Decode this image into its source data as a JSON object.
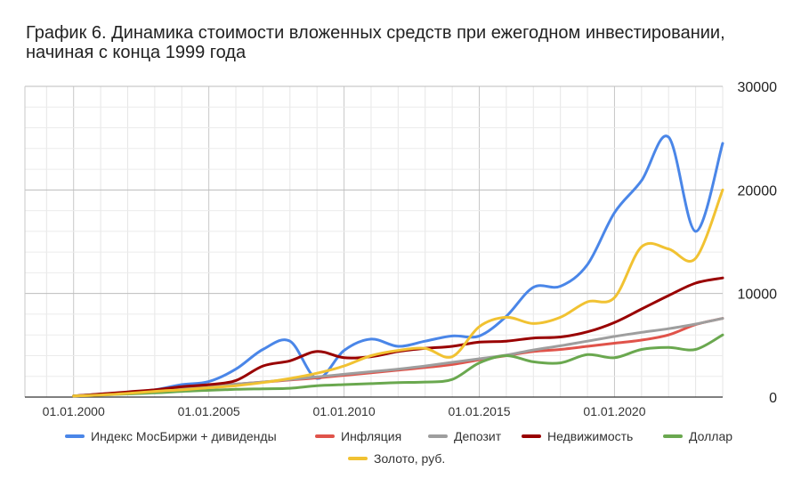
{
  "chart_data": {
    "type": "line",
    "title_line1": "График 6. Динамика стоимости вложенных средств при ежегодном инвестировании,",
    "title_line2": "начиная с конца 1999 года",
    "xlabel": "",
    "ylabel": "",
    "x_ticks": [
      "01.01.2000",
      "01.01.2005",
      "01.01.2010",
      "01.01.2015",
      "01.01.2020"
    ],
    "y_ticks": [
      "0",
      "10000",
      "20000",
      "30000"
    ],
    "ylim": [
      0,
      30000
    ],
    "grid": true,
    "legend_position": "bottom",
    "x": [
      2000,
      2001,
      2002,
      2003,
      2004,
      2005,
      2006,
      2007,
      2008,
      2009,
      2010,
      2011,
      2012,
      2013,
      2014,
      2015,
      2016,
      2017,
      2018,
      2019,
      2020,
      2021,
      2022,
      2023,
      2024
    ],
    "series": [
      {
        "name": "Индекс МосБиржи + дивиденды",
        "color": "#4a86e8",
        "values": [
          100,
          250,
          450,
          700,
          1200,
          1500,
          2700,
          4600,
          5400,
          1800,
          4500,
          5600,
          4900,
          5400,
          5900,
          5900,
          7800,
          10600,
          10700,
          12800,
          17800,
          20900,
          25100,
          16000,
          24500
        ]
      },
      {
        "name": "Инфляция",
        "color": "#e0534a",
        "values": [
          100,
          280,
          450,
          650,
          850,
          1050,
          1250,
          1450,
          1650,
          1850,
          2100,
          2350,
          2600,
          2850,
          3150,
          3600,
          4000,
          4400,
          4600,
          4900,
          5200,
          5500,
          6000,
          7000,
          7600
        ]
      },
      {
        "name": "Депозит",
        "color": "#9e9e9e",
        "values": [
          100,
          280,
          450,
          650,
          850,
          1050,
          1250,
          1450,
          1700,
          1950,
          2200,
          2450,
          2700,
          3000,
          3350,
          3700,
          4050,
          4550,
          4950,
          5400,
          5850,
          6250,
          6600,
          7050,
          7600
        ]
      },
      {
        "name": "Недвижимость",
        "color": "#990000",
        "values": [
          100,
          300,
          500,
          700,
          1000,
          1200,
          1600,
          3000,
          3500,
          4400,
          3800,
          3900,
          4400,
          4700,
          4900,
          5300,
          5400,
          5700,
          5800,
          6300,
          7200,
          8500,
          9800,
          11000,
          11500
        ]
      },
      {
        "name": "Доллар",
        "color": "#6aa84f",
        "values": [
          100,
          200,
          300,
          400,
          550,
          650,
          750,
          800,
          850,
          1100,
          1200,
          1300,
          1400,
          1450,
          1700,
          3300,
          4000,
          3400,
          3300,
          4100,
          3800,
          4600,
          4800,
          4600,
          6000
        ]
      },
      {
        "name": "Золото, руб.",
        "color": "#f1c232",
        "values": [
          100,
          200,
          350,
          550,
          700,
          900,
          1100,
          1400,
          1800,
          2300,
          3000,
          4000,
          4500,
          4700,
          3900,
          6800,
          7700,
          7100,
          7700,
          9200,
          9600,
          14500,
          14300,
          13400,
          20000
        ]
      }
    ]
  }
}
